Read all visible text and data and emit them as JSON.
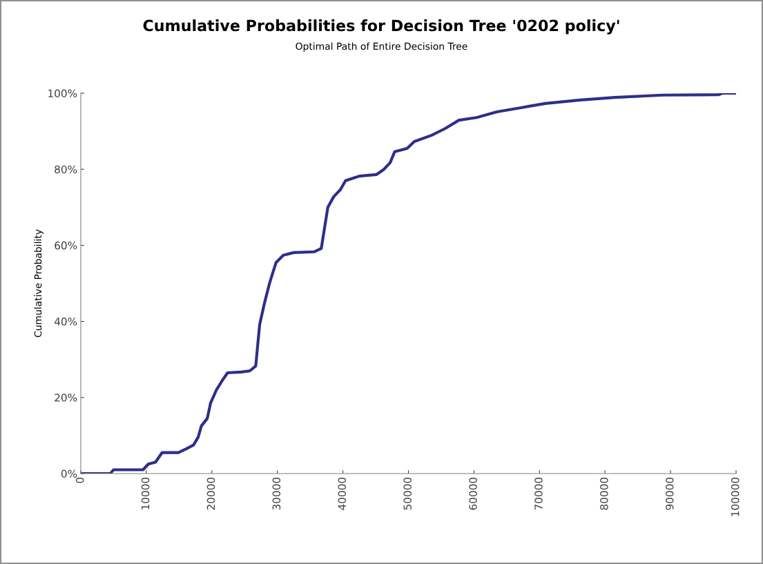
{
  "chart_data": {
    "type": "line",
    "title": "Cumulative Probabilities for Decision Tree '0202 policy'",
    "subtitle": "Optimal Path of Entire Decision Tree",
    "ylabel": "Cumulative Probability",
    "x": [
      0,
      4500,
      5000,
      9500,
      10300,
      11400,
      12400,
      14900,
      16100,
      17200,
      17900,
      18400,
      19300,
      19800,
      20700,
      21600,
      22400,
      24500,
      25800,
      26700,
      27000,
      27300,
      28000,
      28800,
      29800,
      30900,
      32500,
      35600,
      36700,
      37200,
      37700,
      38600,
      39600,
      40400,
      42500,
      45100,
      46200,
      47200,
      47900,
      49800,
      50900,
      53500,
      55600,
      57700,
      60400,
      63500,
      67200,
      70900,
      76200,
      81500,
      88800,
      97300,
      97900,
      100000
    ],
    "series": [
      {
        "color": "#2e2e8a",
        "values": [
          0,
          0,
          1,
          1,
          2.5,
          3,
          5.5,
          5.5,
          6.5,
          7.5,
          9.5,
          12.5,
          14.5,
          18.5,
          22,
          24.5,
          26.5,
          26.7,
          27,
          28.3,
          33.8,
          39.2,
          44.6,
          50,
          55.5,
          57.4,
          58.1,
          58.3,
          59.2,
          64.6,
          70,
          72.8,
          74.6,
          77,
          78.2,
          78.6,
          79.9,
          81.7,
          84.6,
          85.5,
          87.3,
          88.9,
          90.7,
          92.9,
          93.6,
          95.1,
          96.2,
          97.3,
          98.2,
          98.9,
          99.5,
          99.6,
          100,
          100
        ]
      }
    ],
    "xlim": [
      0,
      100000
    ],
    "xticks": [
      0,
      10000,
      20000,
      30000,
      40000,
      50000,
      60000,
      70000,
      80000,
      90000,
      100000
    ],
    "ylim": [
      0,
      100
    ],
    "yticks": [
      {
        "value": 0,
        "label": "0%"
      },
      {
        "value": 20,
        "label": "20%"
      },
      {
        "value": 40,
        "label": "40%"
      },
      {
        "value": 60,
        "label": "60%"
      },
      {
        "value": 80,
        "label": "80%"
      },
      {
        "value": 100,
        "label": "100%"
      }
    ],
    "grid": false,
    "marker": "none",
    "line_style": "solid"
  }
}
